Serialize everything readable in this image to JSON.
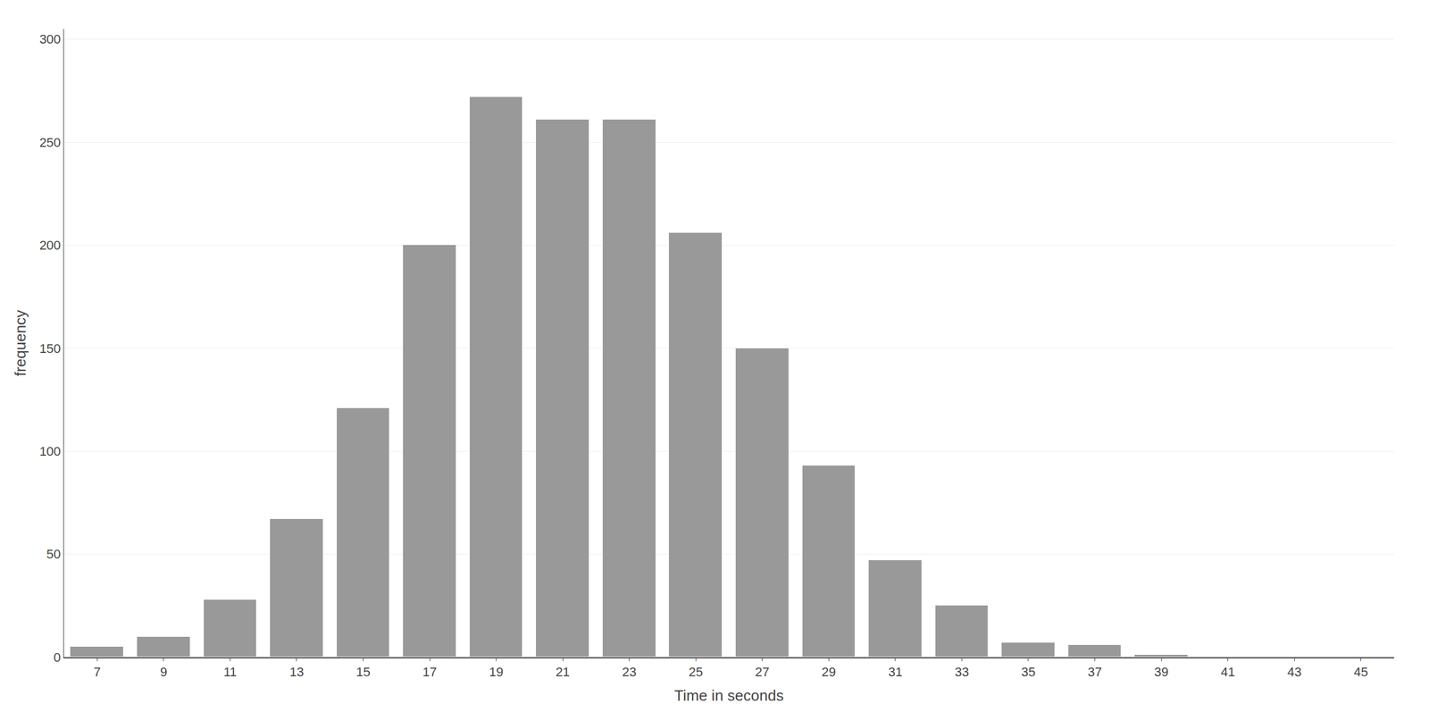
{
  "chart_data": {
    "type": "bar",
    "x": [
      7,
      9,
      11,
      13,
      15,
      17,
      19,
      21,
      23,
      25,
      27,
      29,
      31,
      33,
      35,
      37,
      39
    ],
    "values": [
      5,
      10,
      28,
      67,
      121,
      200,
      272,
      261,
      261,
      206,
      150,
      93,
      47,
      25,
      7,
      6,
      1
    ],
    "color": "#999999",
    "xlabel": "Time in seconds",
    "ylabel": "frequency",
    "xlim": [
      6.0,
      46.0
    ],
    "ylim": [
      0,
      305
    ],
    "xticks": [
      7,
      9,
      11,
      13,
      15,
      17,
      19,
      21,
      23,
      25,
      27,
      29,
      31,
      33,
      35,
      37,
      39,
      41,
      43,
      45
    ],
    "yticks": [
      0,
      50,
      100,
      150,
      200,
      250,
      300
    ],
    "grid": true
  }
}
